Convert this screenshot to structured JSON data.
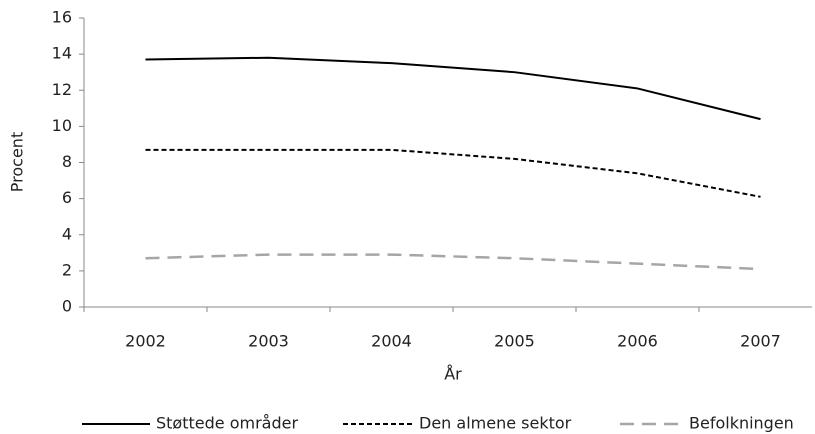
{
  "chart_data": {
    "type": "line",
    "x_label": "År",
    "y_label": "Procent",
    "categories": [
      "2002",
      "2003",
      "2004",
      "2005",
      "2006",
      "2007"
    ],
    "series": [
      {
        "name": "Støttede områder",
        "color": "#000000",
        "dash": "solid",
        "values": [
          13.7,
          13.8,
          13.5,
          13.0,
          12.1,
          10.4
        ]
      },
      {
        "name": "Den almene sektor",
        "color": "#000000",
        "dash": "short",
        "values": [
          8.7,
          8.7,
          8.7,
          8.2,
          7.4,
          6.1
        ]
      },
      {
        "name": "Befolkningen",
        "color": "#a6a6a6",
        "dash": "long",
        "values": [
          2.7,
          2.9,
          2.9,
          2.7,
          2.4,
          2.1
        ]
      }
    ],
    "ylim": [
      0,
      16
    ],
    "yticks": [
      0,
      2,
      4,
      6,
      8,
      10,
      12,
      14,
      16
    ],
    "grid": false,
    "legend": "bottom"
  }
}
